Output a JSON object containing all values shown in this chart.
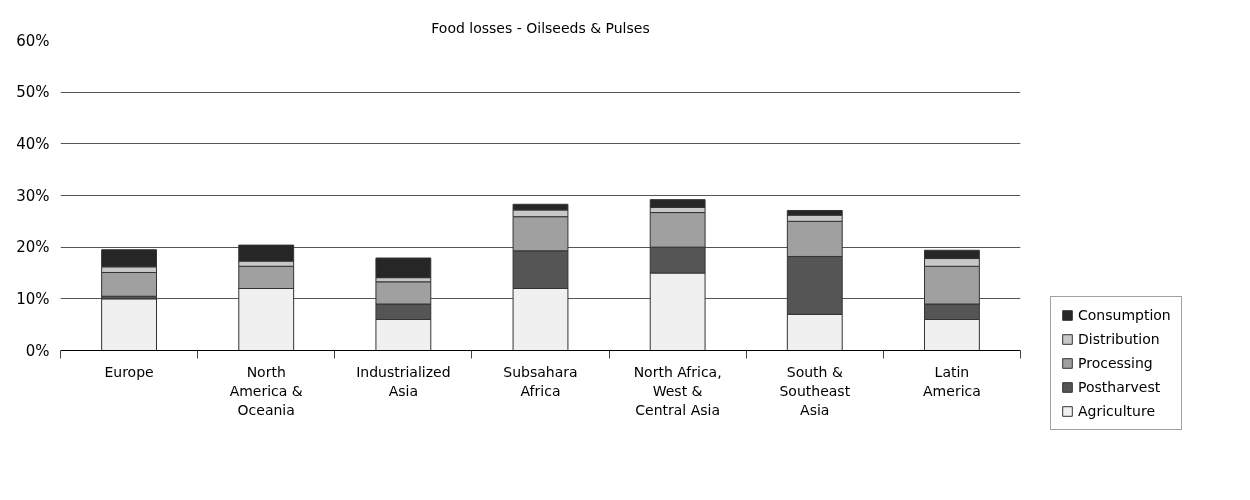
{
  "chart_data": {
    "type": "bar",
    "stacked": true,
    "title": "Food losses - Oilseeds & Pulses",
    "categories": [
      "Europe",
      "North\nAmerica &\nOceania",
      "Industrialized\nAsia",
      "Subsahara\nAfrica",
      "North Africa,\nWest &\nCentral Asia",
      "South &\nSoutheast\nAsia",
      "Latin\nAmerica"
    ],
    "series": [
      {
        "name": "Agriculture",
        "color": "#f0f0f0",
        "values": [
          10,
          12,
          6,
          12,
          15,
          7,
          6
        ]
      },
      {
        "name": "Postharvest",
        "color": "#555555",
        "values": [
          0.5,
          0,
          3,
          7.3,
          5,
          11.2,
          3
        ]
      },
      {
        "name": "Processing",
        "color": "#a0a0a0",
        "values": [
          4.6,
          4.3,
          4.3,
          6.6,
          6.7,
          6.8,
          7.3
        ]
      },
      {
        "name": "Distribution",
        "color": "#c8c8c8",
        "values": [
          1.1,
          1.0,
          0.8,
          1.3,
          1.0,
          1.2,
          1.5
        ]
      },
      {
        "name": "Consumption",
        "color": "#262626",
        "values": [
          3.3,
          3.1,
          3.8,
          1.1,
          1.5,
          0.9,
          1.6
        ]
      }
    ],
    "ylim": [
      0,
      60
    ],
    "yticks": [
      {
        "value": 0,
        "label": "0%"
      },
      {
        "value": 10,
        "label": "10%"
      },
      {
        "value": 20,
        "label": "20%"
      },
      {
        "value": 30,
        "label": "30%"
      },
      {
        "value": 40,
        "label": "40%"
      },
      {
        "value": 50,
        "label": "50%"
      },
      {
        "value": 60,
        "label": "60%"
      }
    ],
    "grid": "y",
    "legend": "right"
  }
}
